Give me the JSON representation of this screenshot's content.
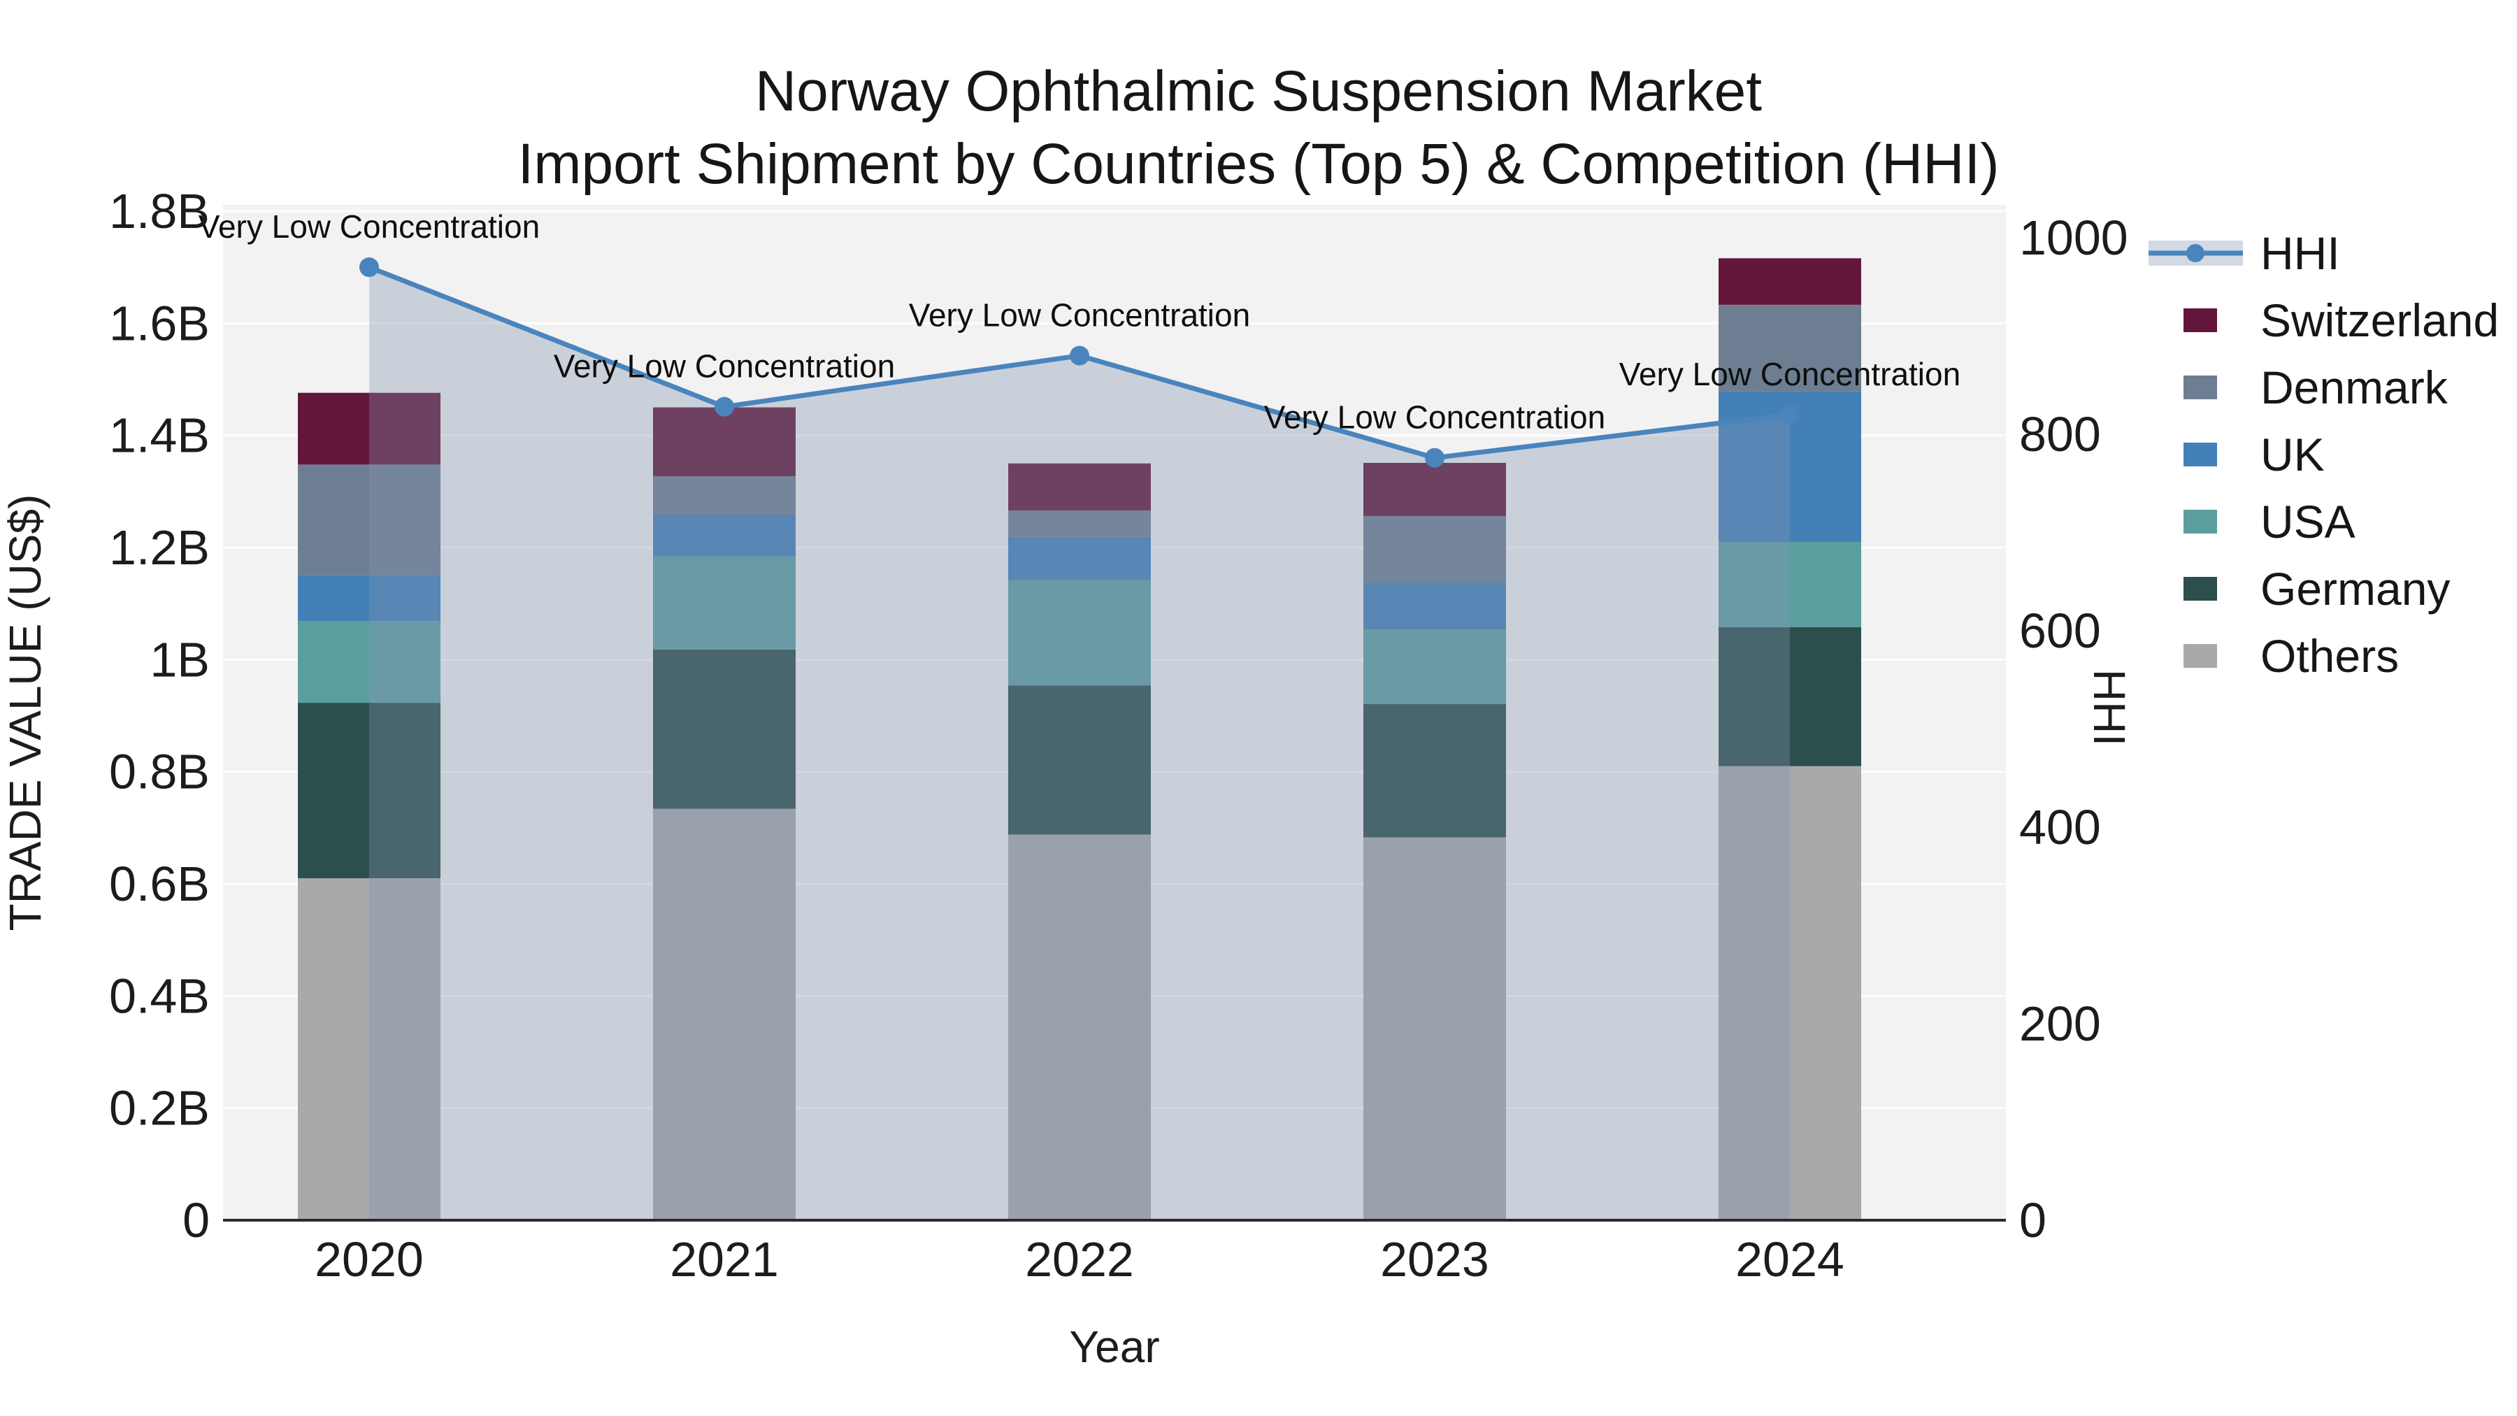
{
  "title": {
    "line1": "Norway Ophthalmic Suspension Market",
    "line2": "Import Shipment by Countries (Top 5) & Competition (HHI)"
  },
  "axes": {
    "x_title": "Year",
    "y_left_title": "TRADE VALUE (US$)",
    "y_right_title": "HHI",
    "y_left_ticks": [
      "0",
      "0.2B",
      "0.4B",
      "0.6B",
      "0.8B",
      "1B",
      "1.2B",
      "1.4B",
      "1.6B",
      "1.8B"
    ],
    "y_right_ticks": [
      "0",
      "200",
      "400",
      "600",
      "800",
      "1000"
    ]
  },
  "legend_labels": [
    "HHI",
    "Switzerland",
    "Denmark",
    "UK",
    "USA",
    "Germany",
    "Others"
  ],
  "colors": {
    "hhi_line": "#4A84BD",
    "hhi_fill": "rgba(128,145,175,0.35)",
    "plot_bg": "#F2F2F2",
    "gridline": "#FFFFFF",
    "axis_line": "#2B2B2B"
  },
  "chart_data": {
    "type": "bar",
    "subtype": "stacked-bars-with-line-overlay",
    "categories": [
      "2020",
      "2021",
      "2022",
      "2023",
      "2024"
    ],
    "value_unit": "US$ billions (trade value, left axis)",
    "series": [
      {
        "name": "Others",
        "color": "#A9A9AB",
        "values": [
          0.61,
          0.734,
          0.688,
          0.683,
          0.81
        ]
      },
      {
        "name": "Germany",
        "color": "#2C4F4C",
        "values": [
          0.313,
          0.284,
          0.266,
          0.238,
          0.248
        ]
      },
      {
        "name": "USA",
        "color": "#5C9EA0",
        "values": [
          0.146,
          0.166,
          0.188,
          0.133,
          0.152
        ]
      },
      {
        "name": "UK",
        "color": "#4380B8",
        "values": [
          0.082,
          0.074,
          0.077,
          0.083,
          0.269
        ]
      },
      {
        "name": "Denmark",
        "color": "#6E7E92",
        "values": [
          0.197,
          0.069,
          0.047,
          0.119,
          0.154
        ]
      },
      {
        "name": "Switzerland",
        "color": "#64163A",
        "values": [
          0.128,
          0.123,
          0.084,
          0.095,
          0.083
        ]
      }
    ],
    "line_series": {
      "name": "HHI",
      "axis": "right",
      "color": "#4A84BD",
      "fill": "rgba(128,145,175,0.35)",
      "values": [
        970,
        828,
        880,
        776,
        820
      ]
    },
    "annotations": [
      {
        "category": "2020",
        "text": "Very Low Concentration"
      },
      {
        "category": "2021",
        "text": "Very Low Concentration"
      },
      {
        "category": "2022",
        "text": "Very Low Concentration"
      },
      {
        "category": "2023",
        "text": "Very Low Concentration"
      },
      {
        "category": "2024",
        "text": "Very Low Concentration"
      }
    ],
    "ylim_left_billions": [
      0,
      1.8
    ],
    "ylim_right": [
      0,
      1000
    ],
    "grid": true,
    "legend_position": "right"
  }
}
